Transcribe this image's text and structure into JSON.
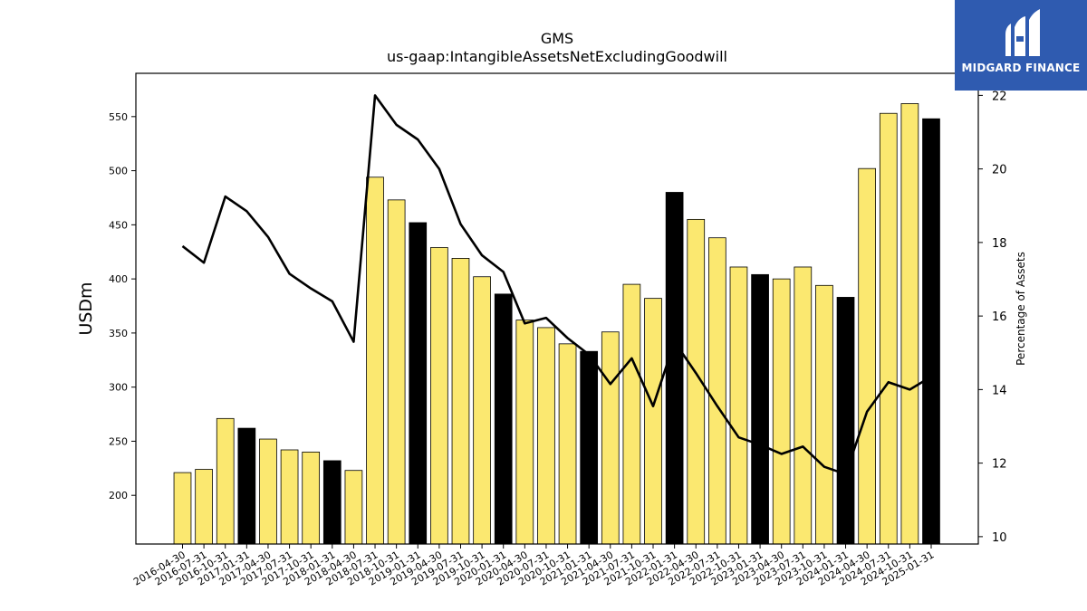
{
  "chart_data": {
    "type": "bar",
    "title": "GMS",
    "subtitle": "us-gaap:IntangibleAssetsNetExcludingGoodwill",
    "ylabel": "USDm",
    "y2label": "Percentage of Assets",
    "ylim": [
      155,
      590
    ],
    "y2lim": [
      9.8,
      22.6
    ],
    "yticks": [
      200,
      250,
      300,
      350,
      400,
      450,
      500,
      550
    ],
    "y2ticks": [
      10,
      12,
      14,
      16,
      18,
      20,
      22
    ],
    "categories": [
      "2016-04-30",
      "2016-07-31",
      "2016-10-31",
      "2017-01-31",
      "2017-04-30",
      "2017-07-31",
      "2017-10-31",
      "2018-01-31",
      "2018-04-30",
      "2018-07-31",
      "2018-10-31",
      "2019-01-31",
      "2019-04-30",
      "2019-07-31",
      "2019-10-31",
      "2020-01-31",
      "2020-04-30",
      "2020-07-31",
      "2020-10-31",
      "2021-01-31",
      "2021-04-30",
      "2021-07-31",
      "2021-10-31",
      "2022-01-31",
      "2022-04-30",
      "2022-07-31",
      "2022-10-31",
      "2023-01-31",
      "2023-04-30",
      "2023-07-31",
      "2023-10-31",
      "2024-01-31",
      "2024-04-30",
      "2024-07-31",
      "2024-10-31",
      "2025-01-31"
    ],
    "series": [
      {
        "type": "bar",
        "values": [
          221,
          224,
          271,
          262,
          252,
          242,
          240,
          232,
          223,
          494,
          473,
          452,
          429,
          419,
          402,
          386,
          362,
          355,
          340,
          333,
          351,
          395,
          382,
          480,
          455,
          438,
          411,
          404,
          400,
          411,
          394,
          383,
          502,
          553,
          562,
          548
        ]
      },
      {
        "type": "line",
        "axis": "right",
        "values": [
          17.9,
          17.45,
          19.25,
          18.85,
          18.15,
          17.15,
          16.75,
          16.4,
          15.3,
          22.0,
          21.2,
          20.8,
          20.0,
          18.5,
          17.65,
          17.2,
          15.8,
          15.95,
          15.4,
          14.95,
          14.15,
          14.85,
          13.55,
          15.3,
          14.45,
          13.55,
          12.7,
          12.5,
          12.25,
          12.45,
          11.9,
          11.7,
          13.4,
          14.2,
          14.0,
          14.35
        ]
      }
    ],
    "bar_colors": {
      "regular": "#fbe870",
      "year_end": "#000000"
    },
    "line_color": "#000000",
    "grid": false
  },
  "logo": {
    "text": "MIDGARD FINANCE",
    "bg": "#2f5bb0"
  }
}
